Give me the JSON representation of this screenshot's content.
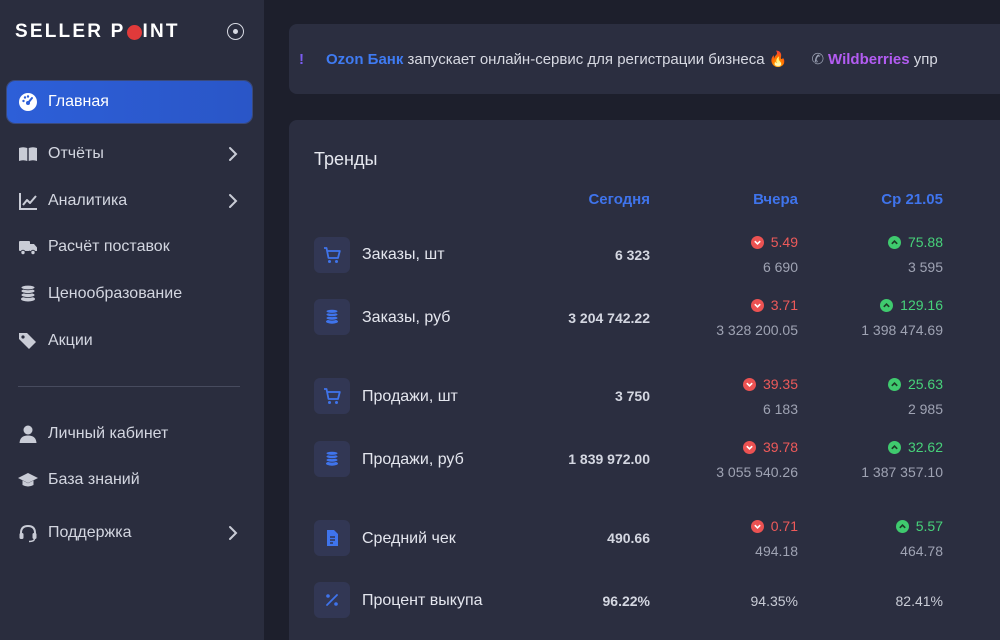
{
  "brand": {
    "logo_left": "SELLER P",
    "logo_right": "INT"
  },
  "sidebar": {
    "items": [
      {
        "label": "Главная",
        "icon": "dashboard-gauge-icon",
        "active": true
      },
      {
        "label": "Отчёты",
        "icon": "book-open-icon",
        "has_submenu": true
      },
      {
        "label": "Аналитика",
        "icon": "line-chart-icon",
        "has_submenu": true
      },
      {
        "label": "Расчёт поставок",
        "icon": "truck-icon"
      },
      {
        "label": "Ценообразование",
        "icon": "coins-icon"
      },
      {
        "label": "Акции",
        "icon": "tags-icon"
      },
      {
        "label": "Личный кабинет",
        "icon": "user-icon"
      },
      {
        "label": "База знаний",
        "icon": "graduation-cap-icon"
      },
      {
        "label": "Поддержка",
        "icon": "headset-icon",
        "has_submenu": true
      }
    ]
  },
  "ticker": {
    "lead": "!",
    "item1_brand": "Ozon Банк",
    "item1_text": " запускает онлайн-сервис для регистрации бизнеса 🔥",
    "item2_brand": "Wildberries",
    "item2_text": " упр"
  },
  "trends": {
    "title": "Тренды",
    "columns": {
      "today": "Сегодня",
      "yesterday": "Вчера",
      "date": "Ср 21.05"
    },
    "rows": [
      {
        "label": "Заказы, шт",
        "icon": "cart-icon",
        "today": "6 323",
        "yesterday": {
          "pct": "5.49",
          "dir": "down",
          "value": "6 690"
        },
        "date": {
          "pct": "75.88",
          "dir": "up",
          "value": "3 595"
        }
      },
      {
        "label": "Заказы, руб",
        "icon": "coins-icon",
        "today": "3 204 742.22",
        "yesterday": {
          "pct": "3.71",
          "dir": "down",
          "value": "3 328 200.05"
        },
        "date": {
          "pct": "129.16",
          "dir": "up",
          "value": "1 398 474.69"
        }
      },
      {
        "label": "Продажи, шт",
        "icon": "cart-icon",
        "today": "3 750",
        "yesterday": {
          "pct": "39.35",
          "dir": "down",
          "value": "6 183"
        },
        "date": {
          "pct": "25.63",
          "dir": "up",
          "value": "2 985"
        }
      },
      {
        "label": "Продажи, руб",
        "icon": "coins-icon",
        "today": "1 839 972.00",
        "yesterday": {
          "pct": "39.78",
          "dir": "down",
          "value": "3 055 540.26"
        },
        "date": {
          "pct": "32.62",
          "dir": "up",
          "value": "1 387 357.10"
        }
      },
      {
        "label": "Средний чек",
        "icon": "receipt-icon",
        "today": "490.66",
        "yesterday": {
          "pct": "0.71",
          "dir": "down",
          "value": "494.18"
        },
        "date": {
          "pct": "5.57",
          "dir": "up",
          "value": "464.78"
        }
      },
      {
        "label": "Процент выкупа",
        "icon": "percent-icon",
        "today": "96.22%",
        "yesterday_plain": "94.35%",
        "date_plain": "82.41%"
      }
    ]
  },
  "colors": {
    "accent": "#2d5fd8",
    "up": "#47d27a",
    "down": "#ee5a5a",
    "header": "#3f74ec"
  }
}
